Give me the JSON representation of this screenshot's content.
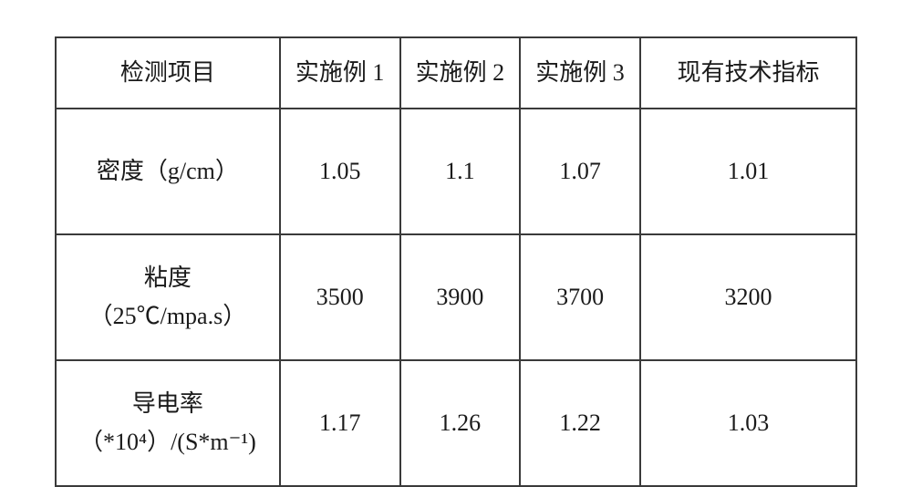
{
  "table": {
    "type": "table",
    "border_color": "#3a3a3a",
    "background_color": "#ffffff",
    "text_color": "#1a1a1a",
    "font_size_pt": 20,
    "columns": [
      {
        "label": "检测项目",
        "width_pct": 28,
        "align": "center"
      },
      {
        "label": "实施例 1",
        "width_pct": 15,
        "align": "center"
      },
      {
        "label": "实施例 2",
        "width_pct": 15,
        "align": "center"
      },
      {
        "label": "实施例 3",
        "width_pct": 15,
        "align": "center"
      },
      {
        "label": "现有技术指标",
        "width_pct": 27,
        "align": "center"
      }
    ],
    "rows": [
      {
        "label_line1": "密度（g/cm）",
        "label_line2": "",
        "values": [
          "1.05",
          "1.1",
          "1.07",
          "1.01"
        ]
      },
      {
        "label_line1": "粘度",
        "label_line2": "（25℃/mpa.s）",
        "values": [
          "3500",
          "3900",
          "3700",
          "3200"
        ]
      },
      {
        "label_line1": "导电率",
        "label_line2": "（*10⁴）/(S*m⁻¹)",
        "values": [
          "1.17",
          "1.26",
          "1.22",
          "1.03"
        ]
      }
    ]
  }
}
